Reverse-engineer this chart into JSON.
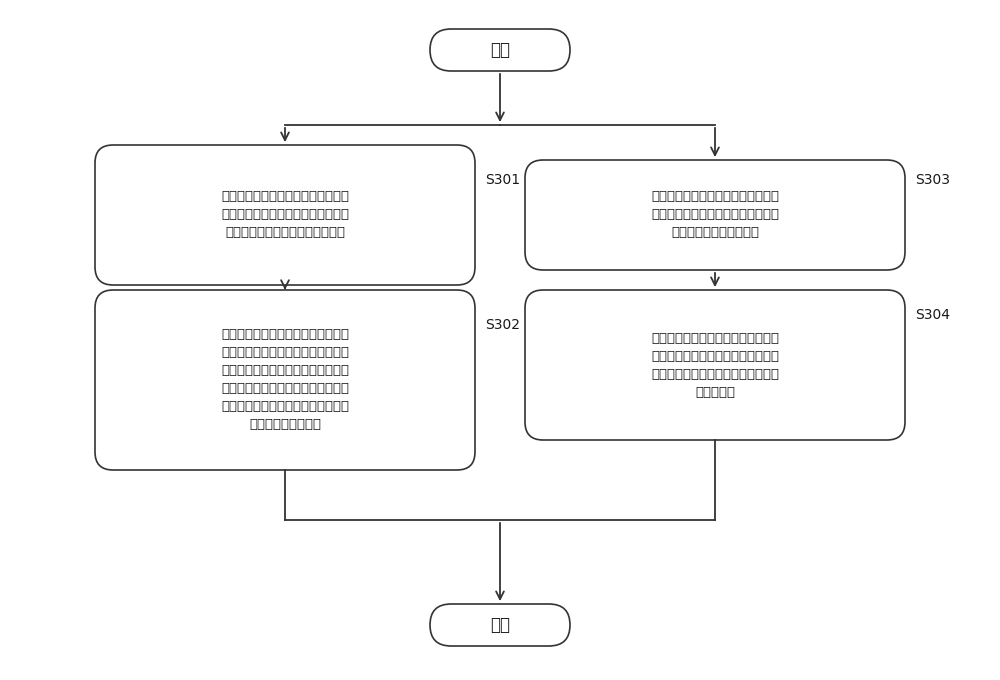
{
  "bg_color": "#ffffff",
  "box_color": "#ffffff",
  "box_edge_color": "#333333",
  "text_color": "#1a1a1a",
  "arrow_color": "#333333",
  "font_size": 9.5,
  "label_font_size": 10,
  "start_end_text": [
    "开始",
    "结束"
  ],
  "step_labels": [
    "S301",
    "S302",
    "S303",
    "S304"
  ],
  "step_texts": [
    "当接收到空调控制器发送的快速制热\n请求时，计算得到混合动力汽车在当\n前状态下正常运行所需的全部功率",
    "将计算得到的混合动力汽车在当前状\n态下正常运行所需的全部功率作为发\n动机输出功率，并将所述发动机输出\n功率发送至发动机控制单元，使得所\n述发动机控制单元控制发动机以所述\n发动机输出功率运行",
    "当接收到空调控制器发送的一般制热\n请求时，根据高压电池的剩余电量的\n信息确定发动机输出功率",
    "将所确定的发动机输出功率发送至发\n动机控制器，使得所述发动机控制器\n控制所述发动机以所确定的发动机输\n出功率运行"
  ]
}
